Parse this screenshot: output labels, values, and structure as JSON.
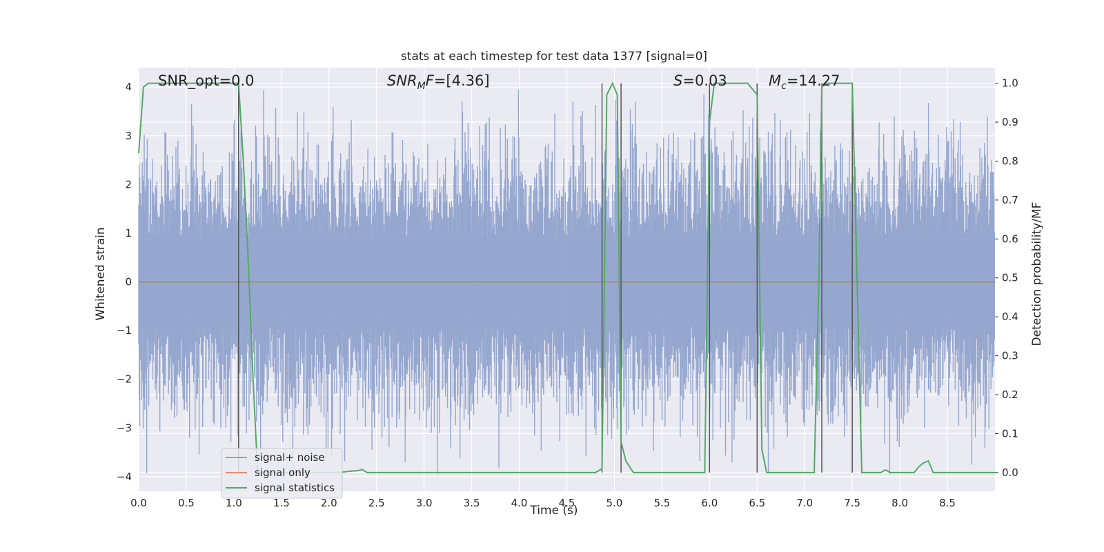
{
  "chart_data": {
    "type": "line",
    "title": "stats at each timestep for test data 1377 [signal=0]",
    "xlabel": "Time (s)",
    "ylabel_left": "Whitened strain",
    "ylabel_right": "Detection probability/MF",
    "xlim": [
      0.0,
      9.0
    ],
    "ylim_left": [
      -4.3,
      4.4
    ],
    "ylim_right": [
      -0.048,
      1.04
    ],
    "x_ticks": [
      "0.0",
      "0.5",
      "1.0",
      "1.5",
      "2.0",
      "2.5",
      "3.0",
      "3.5",
      "4.0",
      "4.5",
      "5.0",
      "5.5",
      "6.0",
      "6.5",
      "7.0",
      "7.5",
      "8.0",
      "8.5"
    ],
    "y_left_ticks": [
      "4",
      "3",
      "2",
      "1",
      "0",
      "−1",
      "−2",
      "−3",
      "−4"
    ],
    "y_right_ticks": [
      "1.0",
      "0.9",
      "0.8",
      "0.7",
      "0.6",
      "0.5",
      "0.4",
      "0.3",
      "0.2",
      "0.1",
      "0.0"
    ],
    "grid": true,
    "annotations": {
      "snr_opt": "SNR_opt=0.0",
      "snr_mf_prefix": "SNR",
      "snr_mf_sub": "M",
      "snr_mf_suffix": "F=[4.36]",
      "s_prefix": "S",
      "s_suffix": "=0.03",
      "mc_prefix": "M",
      "mc_sub": "c",
      "mc_suffix": "=14.27"
    },
    "legend": {
      "placement": "lower-left",
      "entries": [
        "signal+ noise",
        "signal only",
        "signal statistics"
      ]
    },
    "colors": {
      "noise": "#8da0cb",
      "signal": "#e58d6f",
      "stats": "#55a868",
      "vlines": "#555555",
      "background": "#eaeaf2"
    },
    "series": [
      {
        "name": "signal statistics",
        "axis": "right",
        "x": [
          0.0,
          0.05,
          0.1,
          0.2,
          0.3,
          0.4,
          0.5,
          0.6,
          0.7,
          0.8,
          0.9,
          1.0,
          1.05,
          1.1,
          1.15,
          1.2,
          1.25,
          1.3,
          1.4,
          1.6,
          1.8,
          2.0,
          2.1,
          2.2,
          2.3,
          2.35,
          2.4,
          2.6,
          2.8,
          3.0,
          3.5,
          4.0,
          4.5,
          4.8,
          4.87,
          4.92,
          4.98,
          5.03,
          5.07,
          5.12,
          5.2,
          5.3,
          5.4,
          5.6,
          5.8,
          5.95,
          6.0,
          6.05,
          6.1,
          6.2,
          6.3,
          6.4,
          6.5,
          6.55,
          6.6,
          6.7,
          6.9,
          7.1,
          7.15,
          7.18,
          7.22,
          7.3,
          7.4,
          7.5,
          7.55,
          7.6,
          7.7,
          7.8,
          7.85,
          7.9,
          8.0,
          8.15,
          8.2,
          8.25,
          8.3,
          8.35,
          8.5,
          8.7,
          8.9,
          9.0
        ],
        "values": [
          0.82,
          0.99,
          1.0,
          1.0,
          1.0,
          1.0,
          1.0,
          1.0,
          1.0,
          1.0,
          1.0,
          1.0,
          1.0,
          0.8,
          0.55,
          0.25,
          0.0,
          0.0,
          0.0,
          0.0,
          0.0,
          0.0,
          0.0,
          0.003,
          0.005,
          0.008,
          0.0,
          0.0,
          0.0,
          0.0,
          0.0,
          0.0,
          0.0,
          0.0,
          0.01,
          0.97,
          1.0,
          0.97,
          0.08,
          0.03,
          0.0,
          0.0,
          0.0,
          0.0,
          0.0,
          0.0,
          0.9,
          1.0,
          1.0,
          1.0,
          1.0,
          1.0,
          0.97,
          0.06,
          0.0,
          0.0,
          0.0,
          0.0,
          0.5,
          0.99,
          1.0,
          1.0,
          1.0,
          1.0,
          0.5,
          0.0,
          0.0,
          0.0,
          0.007,
          0.0,
          0.0,
          0.0,
          0.015,
          0.025,
          0.03,
          0.0,
          0.0,
          0.0,
          0.0,
          0.0
        ]
      },
      {
        "name": "signal only",
        "axis": "left",
        "x": [
          0.0,
          9.0
        ],
        "values": [
          0.0,
          0.0
        ]
      },
      {
        "name": "signal+ noise",
        "axis": "left",
        "description_note_omitted": "",
        "envelope_x": [
          0.0,
          9.0
        ],
        "std": 1.0
      }
    ],
    "vlines_x": [
      1.05,
      4.87,
      5.07,
      6.0,
      6.5,
      7.18,
      7.5
    ],
    "vlines_range_right": [
      0.0,
      1.0
    ]
  }
}
